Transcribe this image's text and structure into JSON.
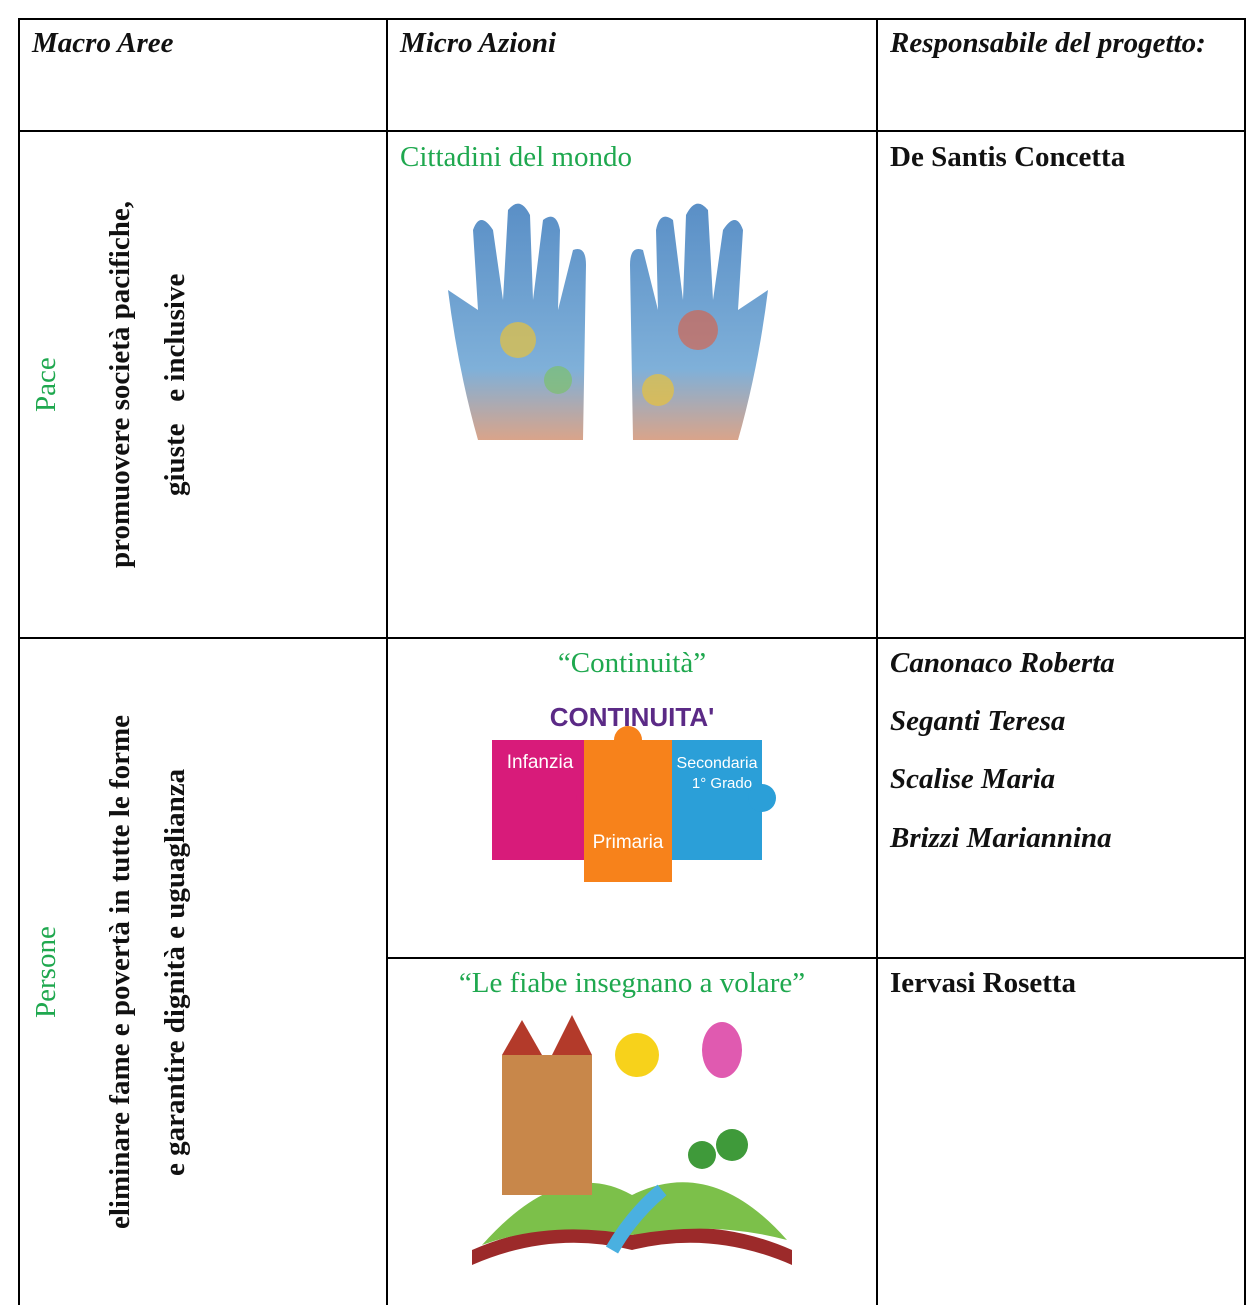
{
  "table": {
    "header": [
      "Macro Aree",
      "Micro Azioni",
      "Responsabile del progetto:"
    ],
    "rows": [
      {
        "area": "Pace",
        "goal": [
          "promuovere società pacifiche,",
          "giuste   e inclusive"
        ],
        "actions": [
          {
            "title": "Cittadini del mondo",
            "responsible": [
              "De Santis Concetta"
            ]
          }
        ]
      },
      {
        "area": "Persone",
        "goal": [
          "eliminare fame e povertà in tutte le forme",
          "e garantire dignità e uguaglianza"
        ],
        "actions": [
          {
            "title": "“Continuità”",
            "image_text": [
              "CONTINUITA'",
              "Infanzia",
              "Primaria",
              "Secondaria",
              "1° Grado"
            ],
            "responsible": [
              "Canonaco Roberta",
              "Seganti Teresa",
              "Scalise Maria",
              "Brizzi Mariannina"
            ]
          },
          {
            "title": "“Le fiabe insegnano a volare”",
            "responsible": [
              "Iervasi Rosetta"
            ]
          }
        ]
      }
    ]
  }
}
